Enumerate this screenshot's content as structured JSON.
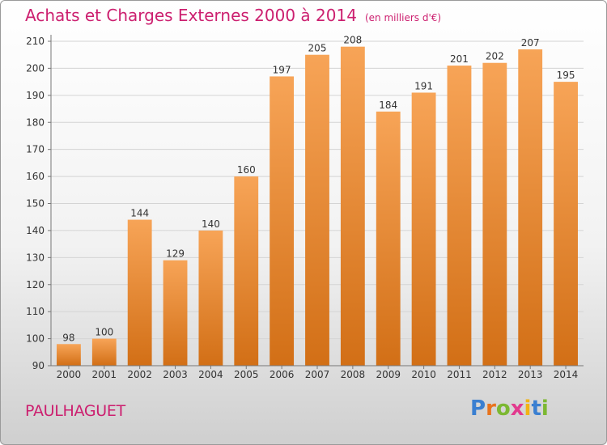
{
  "title": "Achats et Charges Externes 2000 à 2014",
  "unit": "(en milliers d'€)",
  "commune": "PAULHAGUET",
  "logo": {
    "text": "Proxiti",
    "letters": [
      {
        "ch": "P",
        "color": "#3a7fd1"
      },
      {
        "ch": "r",
        "color": "#e8731d"
      },
      {
        "ch": "o",
        "color": "#7cb832"
      },
      {
        "ch": "x",
        "color": "#e23a8e"
      },
      {
        "ch": "i",
        "color": "#f2b313"
      },
      {
        "ch": "t",
        "color": "#3a7fd1"
      },
      {
        "ch": "i",
        "color": "#7cb832"
      }
    ]
  },
  "chart_data": {
    "type": "bar",
    "categories": [
      "2000",
      "2001",
      "2002",
      "2003",
      "2004",
      "2005",
      "2006",
      "2007",
      "2008",
      "2009",
      "2010",
      "2011",
      "2012",
      "2013",
      "2014"
    ],
    "values": [
      98,
      100,
      144,
      129,
      140,
      160,
      197,
      205,
      208,
      184,
      191,
      201,
      202,
      207,
      195
    ],
    "ylim": [
      90,
      210
    ],
    "yticks": [
      90,
      100,
      110,
      120,
      130,
      140,
      150,
      160,
      170,
      180,
      190,
      200,
      210
    ],
    "grid": true,
    "bar_color_top": "#f7a457",
    "bar_color_bottom": "#d26f16"
  }
}
